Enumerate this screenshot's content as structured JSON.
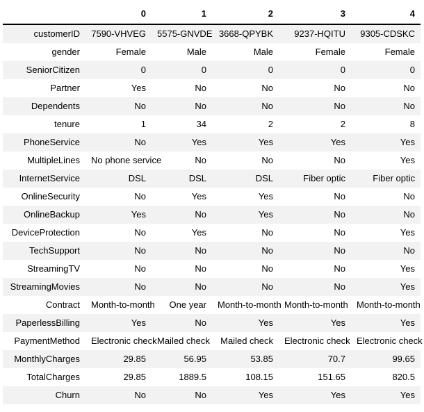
{
  "table": {
    "corner_label": "",
    "columns": [
      "0",
      "1",
      "2",
      "3",
      "4"
    ],
    "rows": [
      {
        "label": "customerID",
        "values": [
          "7590-VHVEG",
          "5575-GNVDE",
          "3668-QPYBK",
          "9237-HQITU",
          "9305-CDSKC"
        ]
      },
      {
        "label": "gender",
        "values": [
          "Female",
          "Male",
          "Male",
          "Female",
          "Female"
        ]
      },
      {
        "label": "SeniorCitizen",
        "values": [
          "0",
          "0",
          "0",
          "0",
          "0"
        ]
      },
      {
        "label": "Partner",
        "values": [
          "Yes",
          "No",
          "No",
          "No",
          "No"
        ]
      },
      {
        "label": "Dependents",
        "values": [
          "No",
          "No",
          "No",
          "No",
          "No"
        ]
      },
      {
        "label": "tenure",
        "values": [
          "1",
          "34",
          "2",
          "2",
          "8"
        ]
      },
      {
        "label": "PhoneService",
        "values": [
          "No",
          "Yes",
          "Yes",
          "Yes",
          "Yes"
        ]
      },
      {
        "label": "MultipleLines",
        "values": [
          "No phone service",
          "No",
          "No",
          "No",
          "Yes"
        ]
      },
      {
        "label": "InternetService",
        "values": [
          "DSL",
          "DSL",
          "DSL",
          "Fiber optic",
          "Fiber optic"
        ]
      },
      {
        "label": "OnlineSecurity",
        "values": [
          "No",
          "Yes",
          "Yes",
          "No",
          "No"
        ]
      },
      {
        "label": "OnlineBackup",
        "values": [
          "Yes",
          "No",
          "Yes",
          "No",
          "No"
        ]
      },
      {
        "label": "DeviceProtection",
        "values": [
          "No",
          "Yes",
          "No",
          "No",
          "Yes"
        ]
      },
      {
        "label": "TechSupport",
        "values": [
          "No",
          "No",
          "No",
          "No",
          "No"
        ]
      },
      {
        "label": "StreamingTV",
        "values": [
          "No",
          "No",
          "No",
          "No",
          "Yes"
        ]
      },
      {
        "label": "StreamingMovies",
        "values": [
          "No",
          "No",
          "No",
          "No",
          "Yes"
        ]
      },
      {
        "label": "Contract",
        "values": [
          "Month-to-month",
          "One year",
          "Month-to-month",
          "Month-to-month",
          "Month-to-month"
        ]
      },
      {
        "label": "PaperlessBilling",
        "values": [
          "Yes",
          "No",
          "Yes",
          "Yes",
          "Yes"
        ]
      },
      {
        "label": "PaymentMethod",
        "values": [
          "Electronic check",
          "Mailed check",
          "Mailed check",
          "Electronic check",
          "Electronic check"
        ]
      },
      {
        "label": "MonthlyCharges",
        "values": [
          "29.85",
          "56.95",
          "53.85",
          "70.7",
          "99.65"
        ]
      },
      {
        "label": "TotalCharges",
        "values": [
          "29.85",
          "1889.5",
          "108.15",
          "151.65",
          "820.5"
        ]
      },
      {
        "label": "Churn",
        "values": [
          "No",
          "No",
          "Yes",
          "Yes",
          "Yes"
        ]
      }
    ]
  },
  "colors": {
    "background": "#ffffff",
    "text": "#000000",
    "row_stripe": "#f2f2f2",
    "header_rule": "#000000"
  }
}
